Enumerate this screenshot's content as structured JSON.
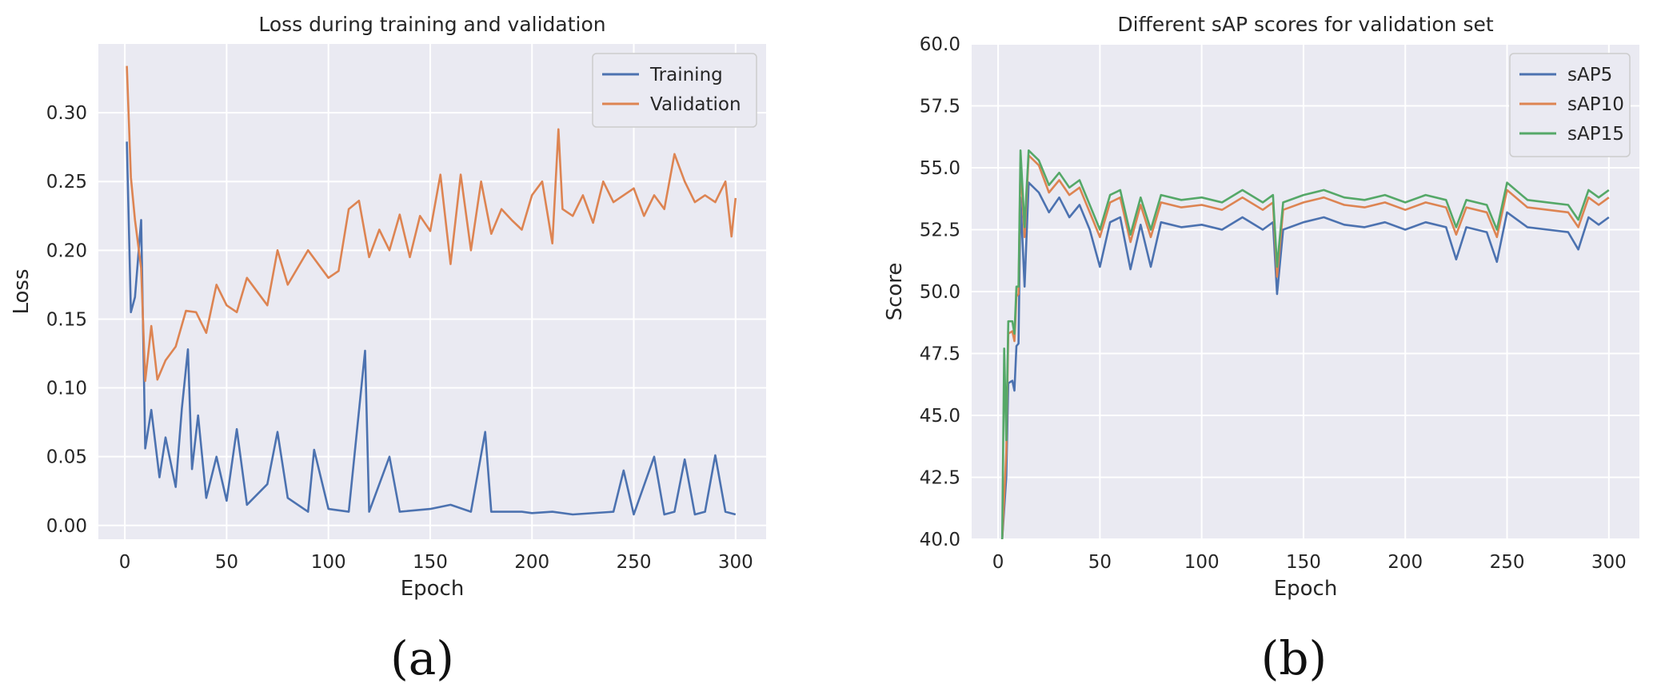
{
  "chart_data": [
    {
      "type": "line",
      "title": "Loss during training and validation",
      "xlabel": "Epoch",
      "ylabel": "Loss",
      "xlim": [
        -13,
        315
      ],
      "ylim": [
        -0.01,
        0.35
      ],
      "xticks": [
        0,
        50,
        100,
        150,
        200,
        250,
        300
      ],
      "yticks": [
        0.0,
        0.05,
        0.1,
        0.15,
        0.2,
        0.25,
        0.3
      ],
      "ytick_decimals": 2,
      "legend_position": "top-right",
      "caption": "(a)",
      "series": [
        {
          "name": "Training",
          "color": "#4c72b0",
          "points": [
            [
              1,
              0.279
            ],
            [
              3,
              0.155
            ],
            [
              5,
              0.166
            ],
            [
              8,
              0.222
            ],
            [
              10,
              0.056
            ],
            [
              13,
              0.084
            ],
            [
              17,
              0.035
            ],
            [
              20,
              0.064
            ],
            [
              25,
              0.028
            ],
            [
              28,
              0.085
            ],
            [
              31,
              0.128
            ],
            [
              33,
              0.041
            ],
            [
              36,
              0.08
            ],
            [
              40,
              0.02
            ],
            [
              45,
              0.05
            ],
            [
              50,
              0.018
            ],
            [
              55,
              0.07
            ],
            [
              60,
              0.015
            ],
            [
              70,
              0.03
            ],
            [
              75,
              0.068
            ],
            [
              80,
              0.02
            ],
            [
              90,
              0.01
            ],
            [
              93,
              0.055
            ],
            [
              100,
              0.012
            ],
            [
              110,
              0.01
            ],
            [
              118,
              0.127
            ],
            [
              120,
              0.01
            ],
            [
              130,
              0.05
            ],
            [
              135,
              0.01
            ],
            [
              150,
              0.012
            ],
            [
              160,
              0.015
            ],
            [
              170,
              0.01
            ],
            [
              177,
              0.068
            ],
            [
              180,
              0.01
            ],
            [
              195,
              0.01
            ],
            [
              200,
              0.009
            ],
            [
              210,
              0.01
            ],
            [
              220,
              0.008
            ],
            [
              240,
              0.01
            ],
            [
              245,
              0.04
            ],
            [
              250,
              0.008
            ],
            [
              260,
              0.05
            ],
            [
              265,
              0.008
            ],
            [
              270,
              0.01
            ],
            [
              275,
              0.048
            ],
            [
              280,
              0.008
            ],
            [
              285,
              0.01
            ],
            [
              290,
              0.051
            ],
            [
              295,
              0.01
            ],
            [
              300,
              0.008
            ]
          ]
        },
        {
          "name": "Validation",
          "color": "#dd8452",
          "points": [
            [
              1,
              0.334
            ],
            [
              3,
              0.253
            ],
            [
              5,
              0.222
            ],
            [
              8,
              0.187
            ],
            [
              10,
              0.105
            ],
            [
              13,
              0.145
            ],
            [
              16,
              0.106
            ],
            [
              20,
              0.12
            ],
            [
              25,
              0.13
            ],
            [
              30,
              0.156
            ],
            [
              35,
              0.155
            ],
            [
              40,
              0.14
            ],
            [
              45,
              0.175
            ],
            [
              50,
              0.16
            ],
            [
              55,
              0.155
            ],
            [
              60,
              0.18
            ],
            [
              70,
              0.16
            ],
            [
              75,
              0.2
            ],
            [
              80,
              0.175
            ],
            [
              90,
              0.2
            ],
            [
              100,
              0.18
            ],
            [
              105,
              0.185
            ],
            [
              110,
              0.23
            ],
            [
              115,
              0.236
            ],
            [
              120,
              0.195
            ],
            [
              125,
              0.215
            ],
            [
              130,
              0.2
            ],
            [
              135,
              0.226
            ],
            [
              140,
              0.195
            ],
            [
              145,
              0.225
            ],
            [
              150,
              0.214
            ],
            [
              155,
              0.255
            ],
            [
              160,
              0.19
            ],
            [
              165,
              0.255
            ],
            [
              170,
              0.2
            ],
            [
              175,
              0.25
            ],
            [
              180,
              0.212
            ],
            [
              185,
              0.23
            ],
            [
              190,
              0.222
            ],
            [
              195,
              0.215
            ],
            [
              200,
              0.24
            ],
            [
              205,
              0.25
            ],
            [
              210,
              0.205
            ],
            [
              213,
              0.288
            ],
            [
              215,
              0.23
            ],
            [
              220,
              0.225
            ],
            [
              225,
              0.24
            ],
            [
              230,
              0.22
            ],
            [
              235,
              0.25
            ],
            [
              240,
              0.235
            ],
            [
              245,
              0.24
            ],
            [
              250,
              0.245
            ],
            [
              255,
              0.225
            ],
            [
              260,
              0.24
            ],
            [
              265,
              0.23
            ],
            [
              270,
              0.27
            ],
            [
              275,
              0.25
            ],
            [
              280,
              0.235
            ],
            [
              285,
              0.24
            ],
            [
              290,
              0.235
            ],
            [
              295,
              0.25
            ],
            [
              298,
              0.21
            ],
            [
              300,
              0.238
            ]
          ]
        }
      ]
    },
    {
      "type": "line",
      "title": "Different sAP scores for validation set",
      "xlabel": "Epoch",
      "ylabel": "Score",
      "xlim": [
        -13,
        315
      ],
      "ylim": [
        40.0,
        60.0
      ],
      "xticks": [
        0,
        50,
        100,
        150,
        200,
        250,
        300
      ],
      "yticks": [
        40.0,
        42.5,
        45.0,
        47.5,
        50.0,
        52.5,
        55.0,
        57.5,
        60.0
      ],
      "ytick_decimals": 1,
      "legend_position": "top-right",
      "caption": "(b)",
      "series": [
        {
          "name": "sAP5",
          "color": "#4c72b0",
          "points": [
            [
              2,
              40.0
            ],
            [
              4,
              42.5
            ],
            [
              5,
              46.3
            ],
            [
              7,
              46.4
            ],
            [
              8,
              46.0
            ],
            [
              9,
              47.8
            ],
            [
              10,
              47.9
            ],
            [
              11,
              53.8
            ],
            [
              13,
              50.2
            ],
            [
              15,
              54.4
            ],
            [
              20,
              54.0
            ],
            [
              25,
              53.2
            ],
            [
              30,
              53.8
            ],
            [
              35,
              53.0
            ],
            [
              40,
              53.5
            ],
            [
              45,
              52.5
            ],
            [
              50,
              51.0
            ],
            [
              55,
              52.8
            ],
            [
              60,
              53.0
            ],
            [
              65,
              50.9
            ],
            [
              70,
              52.7
            ],
            [
              75,
              51.0
            ],
            [
              80,
              52.8
            ],
            [
              90,
              52.6
            ],
            [
              100,
              52.7
            ],
            [
              110,
              52.5
            ],
            [
              120,
              53.0
            ],
            [
              130,
              52.5
            ],
            [
              135,
              52.8
            ],
            [
              137,
              49.9
            ],
            [
              140,
              52.5
            ],
            [
              150,
              52.8
            ],
            [
              160,
              53.0
            ],
            [
              170,
              52.7
            ],
            [
              180,
              52.6
            ],
            [
              190,
              52.8
            ],
            [
              200,
              52.5
            ],
            [
              210,
              52.8
            ],
            [
              220,
              52.6
            ],
            [
              225,
              51.3
            ],
            [
              230,
              52.6
            ],
            [
              240,
              52.4
            ],
            [
              245,
              51.2
            ],
            [
              250,
              53.2
            ],
            [
              260,
              52.6
            ],
            [
              270,
              52.5
            ],
            [
              280,
              52.4
            ],
            [
              285,
              51.7
            ],
            [
              290,
              53.0
            ],
            [
              295,
              52.7
            ],
            [
              300,
              53.0
            ]
          ]
        },
        {
          "name": "sAP10",
          "color": "#dd8452",
          "points": [
            [
              2,
              40.0
            ],
            [
              4,
              43.5
            ],
            [
              5,
              48.3
            ],
            [
              7,
              48.4
            ],
            [
              8,
              48.0
            ],
            [
              9,
              49.8
            ],
            [
              10,
              49.9
            ],
            [
              11,
              55.2
            ],
            [
              13,
              52.2
            ],
            [
              15,
              55.5
            ],
            [
              20,
              55.1
            ],
            [
              25,
              54.0
            ],
            [
              30,
              54.5
            ],
            [
              35,
              53.9
            ],
            [
              40,
              54.2
            ],
            [
              45,
              53.2
            ],
            [
              50,
              52.2
            ],
            [
              55,
              53.6
            ],
            [
              60,
              53.8
            ],
            [
              65,
              52.0
            ],
            [
              70,
              53.5
            ],
            [
              75,
              52.2
            ],
            [
              80,
              53.6
            ],
            [
              90,
              53.4
            ],
            [
              100,
              53.5
            ],
            [
              110,
              53.3
            ],
            [
              120,
              53.8
            ],
            [
              130,
              53.3
            ],
            [
              135,
              53.6
            ],
            [
              137,
              50.6
            ],
            [
              140,
              53.3
            ],
            [
              150,
              53.6
            ],
            [
              160,
              53.8
            ],
            [
              170,
              53.5
            ],
            [
              180,
              53.4
            ],
            [
              190,
              53.6
            ],
            [
              200,
              53.3
            ],
            [
              210,
              53.6
            ],
            [
              220,
              53.4
            ],
            [
              225,
              52.3
            ],
            [
              230,
              53.4
            ],
            [
              240,
              53.2
            ],
            [
              245,
              52.2
            ],
            [
              250,
              54.1
            ],
            [
              260,
              53.4
            ],
            [
              270,
              53.3
            ],
            [
              280,
              53.2
            ],
            [
              285,
              52.6
            ],
            [
              290,
              53.8
            ],
            [
              295,
              53.5
            ],
            [
              300,
              53.8
            ]
          ]
        },
        {
          "name": "sAP15",
          "color": "#55a868",
          "points": [
            [
              2,
              40.0
            ],
            [
              3,
              47.7
            ],
            [
              4,
              44.0
            ],
            [
              5,
              48.8
            ],
            [
              7,
              48.8
            ],
            [
              8,
              48.3
            ],
            [
              9,
              50.2
            ],
            [
              10,
              50.2
            ],
            [
              11,
              55.7
            ],
            [
              13,
              52.6
            ],
            [
              15,
              55.7
            ],
            [
              20,
              55.3
            ],
            [
              25,
              54.3
            ],
            [
              30,
              54.8
            ],
            [
              35,
              54.2
            ],
            [
              40,
              54.5
            ],
            [
              45,
              53.5
            ],
            [
              50,
              52.5
            ],
            [
              55,
              53.9
            ],
            [
              60,
              54.1
            ],
            [
              65,
              52.3
            ],
            [
              70,
              53.8
            ],
            [
              75,
              52.5
            ],
            [
              80,
              53.9
            ],
            [
              90,
              53.7
            ],
            [
              100,
              53.8
            ],
            [
              110,
              53.6
            ],
            [
              120,
              54.1
            ],
            [
              130,
              53.6
            ],
            [
              135,
              53.9
            ],
            [
              137,
              51.0
            ],
            [
              140,
              53.6
            ],
            [
              150,
              53.9
            ],
            [
              160,
              54.1
            ],
            [
              170,
              53.8
            ],
            [
              180,
              53.7
            ],
            [
              190,
              53.9
            ],
            [
              200,
              53.6
            ],
            [
              210,
              53.9
            ],
            [
              220,
              53.7
            ],
            [
              225,
              52.6
            ],
            [
              230,
              53.7
            ],
            [
              240,
              53.5
            ],
            [
              245,
              52.5
            ],
            [
              250,
              54.4
            ],
            [
              260,
              53.7
            ],
            [
              270,
              53.6
            ],
            [
              280,
              53.5
            ],
            [
              285,
              52.9
            ],
            [
              290,
              54.1
            ],
            [
              295,
              53.8
            ],
            [
              300,
              54.1
            ]
          ]
        }
      ]
    }
  ]
}
